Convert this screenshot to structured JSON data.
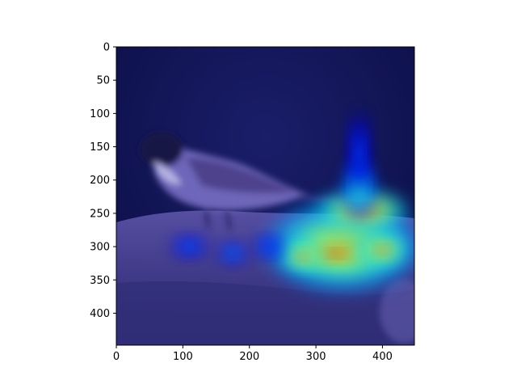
{
  "chart_data": {
    "type": "heatmap",
    "title": "",
    "xlabel": "",
    "ylabel": "",
    "xlim": [
      0,
      448
    ],
    "ylim": [
      448,
      0
    ],
    "x_ticks": [
      0,
      100,
      200,
      300,
      400
    ],
    "y_ticks": [
      0,
      50,
      100,
      150,
      200,
      250,
      300,
      350,
      400
    ],
    "x_tick_labels": [
      "0",
      "100",
      "200",
      "300",
      "400"
    ],
    "y_tick_labels": [
      "0",
      "50",
      "100",
      "150",
      "200",
      "250",
      "300",
      "350",
      "400"
    ],
    "grid": false,
    "colormap": "jet",
    "background_image": "sparrow-photo-on-rock",
    "hotspots": [
      {
        "x": 340,
        "y": 300,
        "rx": 120,
        "ry": 70,
        "intensity": 0.75
      },
      {
        "x": 330,
        "y": 310,
        "rx": 70,
        "ry": 25,
        "intensity": 0.95
      },
      {
        "x": 400,
        "y": 305,
        "rx": 40,
        "ry": 25,
        "intensity": 0.85
      },
      {
        "x": 280,
        "y": 315,
        "rx": 30,
        "ry": 20,
        "intensity": 0.9
      },
      {
        "x": 370,
        "y": 245,
        "rx": 70,
        "ry": 30,
        "intensity": 0.9
      },
      {
        "x": 365,
        "y": 215,
        "rx": 25,
        "ry": 45,
        "intensity": 0.5
      },
      {
        "x": 365,
        "y": 160,
        "rx": 15,
        "ry": 60,
        "intensity": 0.25
      },
      {
        "x": 110,
        "y": 300,
        "rx": 25,
        "ry": 15,
        "intensity": 0.3
      },
      {
        "x": 175,
        "y": 310,
        "rx": 20,
        "ry": 15,
        "intensity": 0.35
      },
      {
        "x": 230,
        "y": 300,
        "rx": 20,
        "ry": 15,
        "intensity": 0.3
      }
    ],
    "colors": {
      "background_dark": "#0b0f3a",
      "bird_body": "#9c90d6",
      "rock": "#5b5596"
    }
  }
}
